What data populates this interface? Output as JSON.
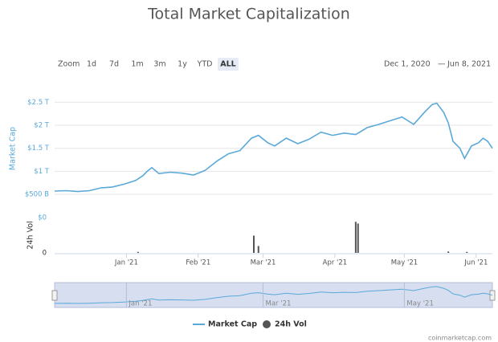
{
  "chart_data": {
    "type": "line",
    "title": "Total Market Capitalization",
    "zoom_label": "Zoom",
    "range_buttons": [
      "1d",
      "7d",
      "1m",
      "3m",
      "1y",
      "YTD",
      "ALL"
    ],
    "active_button": "ALL",
    "date_from": "Dec 1, 2020",
    "date_separator": "—",
    "date_to": "Jun 8, 2021",
    "y_label": "Market Cap",
    "xlim": [
      0,
      189
    ],
    "xticks": [
      {
        "value": 31,
        "label": "Jan '21"
      },
      {
        "value": 62,
        "label": "Feb '21"
      },
      {
        "value": 90,
        "label": "Mar '21"
      },
      {
        "value": 121,
        "label": "Apr '21"
      },
      {
        "value": 151,
        "label": "May '21"
      },
      {
        "value": 182,
        "label": "Jun '21"
      }
    ],
    "ylim": [
      0.1,
      2.75
    ],
    "yticks": [
      {
        "value": 0.5,
        "label": "$500 B"
      },
      {
        "value": 1,
        "label": "$1 T"
      },
      {
        "value": 1.5,
        "label": "$1.5 T"
      },
      {
        "value": 2,
        "label": "$2 T"
      },
      {
        "value": 2.5,
        "label": "$2.5 T"
      }
    ],
    "grid": true,
    "x": [
      0,
      5,
      10,
      15,
      20,
      25,
      30,
      35,
      38,
      40,
      42,
      45,
      50,
      55,
      60,
      65,
      70,
      75,
      80,
      85,
      88,
      92,
      95,
      100,
      105,
      110,
      115,
      120,
      125,
      130,
      135,
      140,
      145,
      150,
      155,
      160,
      163,
      165,
      168,
      170,
      172,
      175,
      177,
      180,
      183,
      185,
      187,
      189
    ],
    "series": [
      {
        "name": "Market Cap",
        "color": "#5aa9d9",
        "values": [
          0.57,
          0.58,
          0.56,
          0.58,
          0.64,
          0.66,
          0.72,
          0.8,
          0.9,
          1.0,
          1.08,
          0.95,
          0.98,
          0.96,
          0.92,
          1.02,
          1.22,
          1.38,
          1.45,
          1.72,
          1.78,
          1.62,
          1.55,
          1.72,
          1.6,
          1.7,
          1.85,
          1.78,
          1.83,
          1.8,
          1.95,
          2.02,
          2.1,
          2.18,
          2.02,
          2.3,
          2.45,
          2.48,
          2.28,
          2.05,
          1.65,
          1.5,
          1.28,
          1.55,
          1.62,
          1.72,
          1.65,
          1.5
        ]
      },
      {
        "name": "24h Vol",
        "color": "#555555"
      }
    ],
    "volume": {
      "label": "24h Vol",
      "tick_labels": [
        "$0",
        "0"
      ],
      "ylim": [
        0,
        1
      ],
      "x": [
        36,
        86,
        88,
        130,
        131,
        170,
        178
      ],
      "values": [
        0.03,
        0.5,
        0.2,
        0.9,
        0.85,
        0.04,
        0.03
      ]
    },
    "navigator_labels": [
      {
        "value": 31,
        "label": "Jan '21"
      },
      {
        "value": 90,
        "label": "Mar '21"
      },
      {
        "value": 151,
        "label": "May '21"
      }
    ],
    "credit": "coinmarketcap.com"
  }
}
